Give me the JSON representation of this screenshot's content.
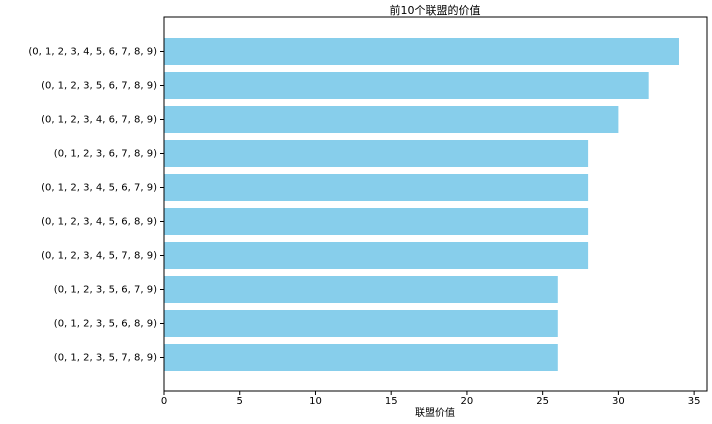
{
  "chart_data": {
    "type": "barh",
    "title": "前10个联盟的价值",
    "x_label": "联盟价值",
    "categories": [
      "(0, 1, 2, 3, 4, 5, 6, 7, 8, 9)",
      "(0, 1, 2, 3, 5, 6, 7, 8, 9)",
      "(0, 1, 2, 3, 4, 6, 7, 8, 9)",
      "(0, 1, 2, 3, 6, 7, 8, 9)",
      "(0, 1, 2, 3, 4, 5, 6, 7, 9)",
      "(0, 1, 2, 3, 4, 5, 6, 8, 9)",
      "(0, 1, 2, 3, 4, 5, 7, 8, 9)",
      "(0, 1, 2, 3, 5, 6, 7, 9)",
      "(0, 1, 2, 3, 5, 6, 8, 9)",
      "(0, 1, 2, 3, 5, 7, 8, 9)"
    ],
    "values": [
      34,
      32,
      30,
      28,
      28,
      28,
      28,
      26,
      26,
      26
    ],
    "color": "#87ceeb",
    "xlim": [
      0,
      35.85
    ],
    "xticks": [
      0,
      5,
      10,
      15,
      20,
      25,
      30,
      35
    ]
  }
}
